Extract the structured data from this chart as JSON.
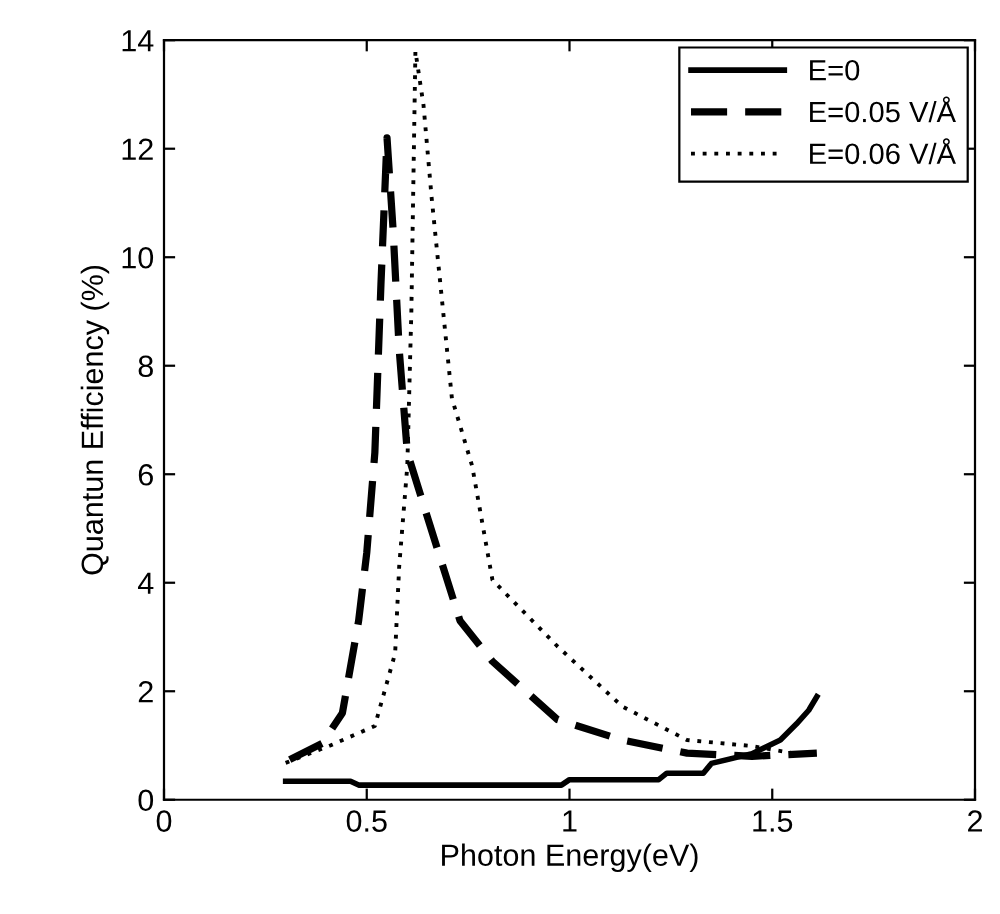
{
  "chart_data": {
    "type": "line",
    "xlabel": "Photon Energy(eV)",
    "ylabel": "Quantun Efficiency (%)",
    "xlim": [
      0,
      2
    ],
    "xticks": [
      0,
      0.5,
      1,
      1.5,
      2
    ],
    "ylim": [
      0,
      14
    ],
    "yticks": [
      0,
      2,
      4,
      6,
      8,
      10,
      12,
      14
    ],
    "grid": false,
    "legend": "top right",
    "marker": "none",
    "series": [
      {
        "name": "E=0",
        "color": "#000000",
        "line_style": "solid",
        "x": [
          0.3,
          0.46,
          0.48,
          0.98,
          1.0,
          1.22,
          1.24,
          1.33,
          1.35,
          1.45,
          1.52,
          1.56,
          1.59,
          1.61
        ],
        "values": [
          0.34,
          0.34,
          0.27,
          0.27,
          0.37,
          0.37,
          0.49,
          0.49,
          0.67,
          0.85,
          1.1,
          1.4,
          1.65,
          1.9
        ]
      },
      {
        "name": "E=0.05 V/Å",
        "color": "#000000",
        "line_style": "dashed",
        "x": [
          0.31,
          0.39,
          0.44,
          0.48,
          0.5,
          0.52,
          0.535,
          0.55,
          0.565,
          0.58,
          0.6,
          0.65,
          0.73,
          0.81,
          0.97,
          1.13,
          1.29,
          1.45,
          1.61
        ],
        "values": [
          0.74,
          1.04,
          1.6,
          3.3,
          4.55,
          6.4,
          9.5,
          12.2,
          10.5,
          8.3,
          6.4,
          5.2,
          3.3,
          2.55,
          1.48,
          1.1,
          0.86,
          0.8,
          0.86
        ]
      },
      {
        "name": "E=0.06 V/Å",
        "color": "#000000",
        "line_style": "dotted",
        "x": [
          0.3,
          0.41,
          0.52,
          0.57,
          0.58,
          0.6,
          0.61,
          0.62,
          0.64,
          0.66,
          0.71,
          0.76,
          0.81,
          0.97,
          1.13,
          1.29,
          1.45,
          1.55
        ],
        "values": [
          0.68,
          1.0,
          1.36,
          2.7,
          4.3,
          6.15,
          9.0,
          13.8,
          12.8,
          11.1,
          7.4,
          6.15,
          4.05,
          2.83,
          1.72,
          1.1,
          0.99,
          0.86
        ]
      }
    ]
  }
}
